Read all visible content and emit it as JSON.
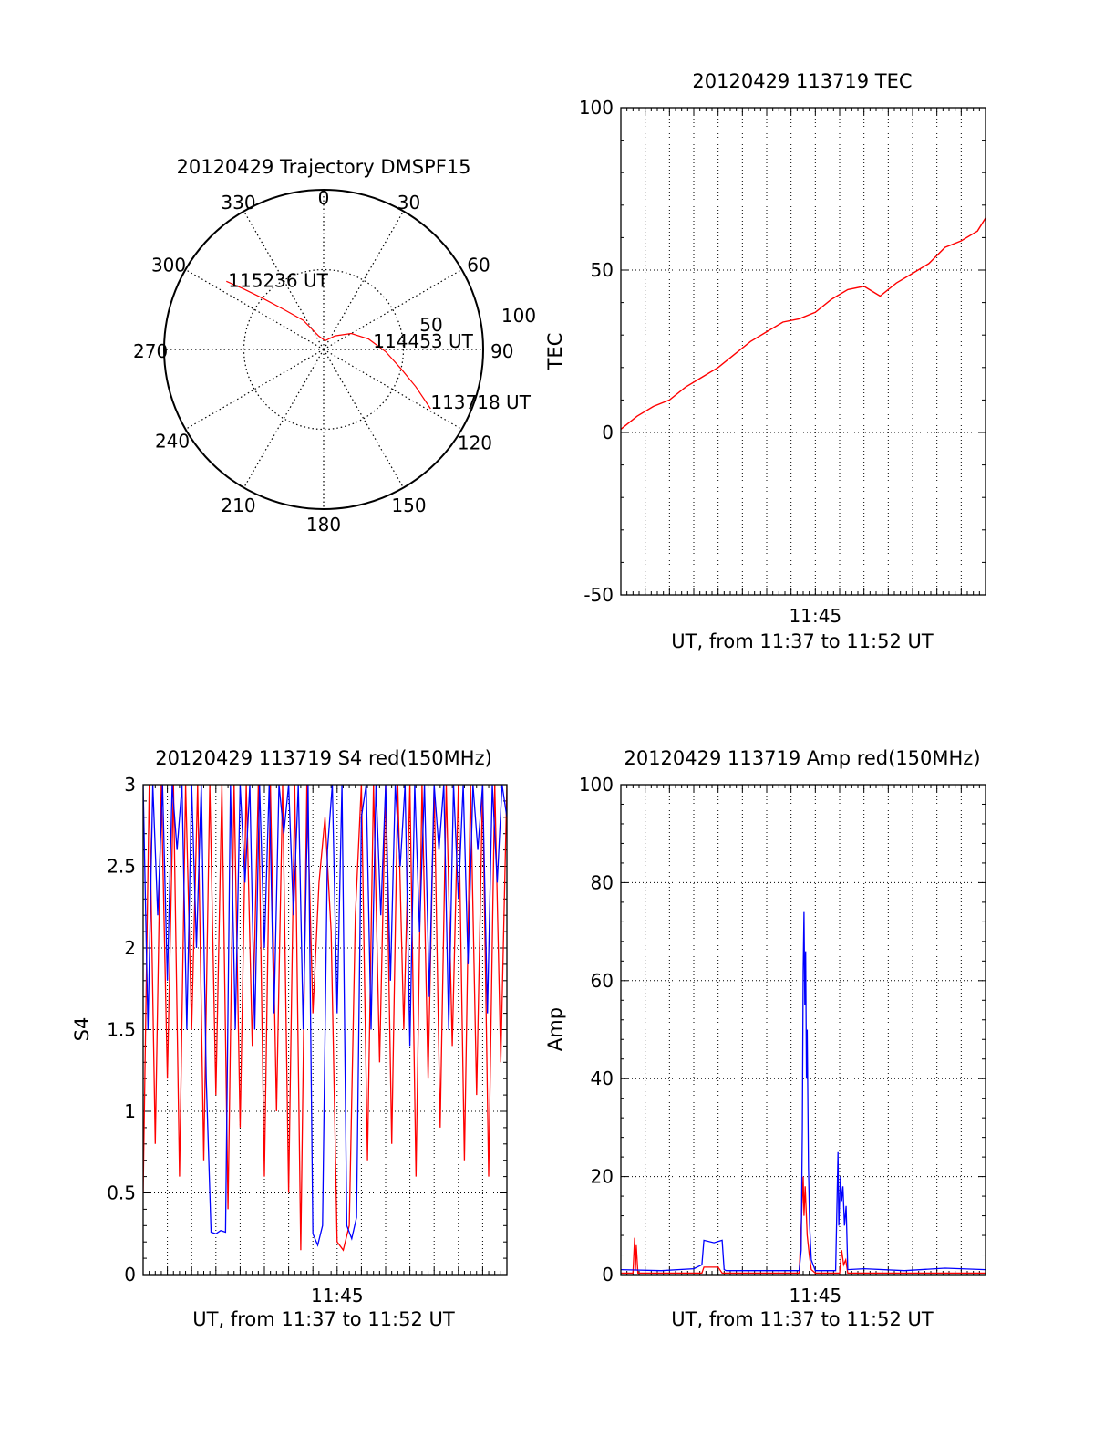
{
  "chart_data": [
    {
      "id": "trajectory",
      "type": "polar",
      "title": "20120429 Trajectory DMSPF15",
      "angle_labels": [
        "0",
        "30",
        "60",
        "90",
        "120",
        "150",
        "180",
        "210",
        "240",
        "270",
        "300",
        "330"
      ],
      "radial_labels": [
        "50",
        "100"
      ],
      "radial_axis": "elevation",
      "series": [
        {
          "color": "#ff0000",
          "points": [
            {
              "az": 119,
              "el": 21
            },
            {
              "az": 112,
              "el": 34
            },
            {
              "az": 104,
              "el": 45
            },
            {
              "az": 92,
              "el": 55
            },
            {
              "az": 77,
              "el": 64
            },
            {
              "az": 60,
              "el": 72
            },
            {
              "az": 40,
              "el": 80
            },
            {
              "az": 10,
              "el": 85
            },
            {
              "az": -20,
              "el": 82
            },
            {
              "az": -35,
              "el": 70
            },
            {
              "az": -45,
              "el": 58
            },
            {
              "az": -50,
              "el": 45
            },
            {
              "az": -53,
              "el": 33
            },
            {
              "az": -55,
              "el": 23
            }
          ]
        }
      ],
      "annotations": [
        {
          "text": "115236 UT",
          "az": -55,
          "el": 23
        },
        {
          "text": "114453 UT",
          "az": 92,
          "el": 60
        },
        {
          "text": "113718 UT",
          "az": 119,
          "el": 21
        }
      ]
    },
    {
      "id": "tec",
      "type": "line",
      "title": "20120429 113719 TEC",
      "xlabel": "UT, from 11:37 to 11:52 UT",
      "ylabel": "TEC",
      "xlim": [
        0,
        900
      ],
      "ylim": [
        -50,
        100
      ],
      "yticks": [
        "-50",
        "0",
        "50",
        "100"
      ],
      "xticks": [
        {
          "t": 480,
          "label": "11:45"
        }
      ],
      "grid": true,
      "series": [
        {
          "color": "#ff0000",
          "x": [
            0,
            40,
            80,
            120,
            160,
            200,
            240,
            280,
            320,
            360,
            400,
            440,
            480,
            520,
            560,
            600,
            640,
            680,
            720,
            760,
            800,
            840,
            880,
            900
          ],
          "y": [
            1,
            5,
            8,
            10,
            14,
            17,
            20,
            24,
            28,
            31,
            34,
            35,
            37,
            41,
            44,
            45,
            42,
            46,
            49,
            52,
            57,
            59,
            62,
            66
          ]
        }
      ]
    },
    {
      "id": "s4",
      "type": "line",
      "title": "20120429 113719 S4 red(150MHz)",
      "xlabel": "UT, from 11:37 to 11:52 UT",
      "ylabel": "S4",
      "xlim": [
        0,
        900
      ],
      "ylim": [
        0,
        3
      ],
      "yticks": [
        "0",
        "0.5",
        "1",
        "1.5",
        "2",
        "2.5",
        "3"
      ],
      "xticks": [
        {
          "t": 480,
          "label": "11:45"
        }
      ],
      "grid": true,
      "series": [
        {
          "color": "#ff0000",
          "x": [
            0,
            15,
            30,
            45,
            60,
            75,
            90,
            105,
            120,
            135,
            150,
            165,
            180,
            195,
            210,
            225,
            240,
            255,
            270,
            285,
            300,
            315,
            330,
            345,
            360,
            375,
            390,
            405,
            420,
            435,
            450,
            465,
            480,
            495,
            510,
            525,
            540,
            555,
            570,
            585,
            600,
            615,
            630,
            645,
            660,
            675,
            690,
            705,
            720,
            735,
            750,
            765,
            780,
            795,
            810,
            825,
            840,
            855,
            870,
            885,
            900
          ],
          "y": [
            0.5,
            3,
            0.8,
            3,
            1.2,
            3,
            0.6,
            3,
            1.5,
            3,
            0.7,
            3,
            1.1,
            3,
            0.4,
            3,
            0.9,
            3,
            1.4,
            3,
            0.6,
            3,
            1.0,
            3,
            0.5,
            3,
            0.15,
            3,
            1.6,
            2.4,
            2.8,
            2.1,
            0.2,
            0.15,
            0.3,
            2.2,
            3,
            0.7,
            3,
            1.3,
            3,
            0.8,
            3,
            1.5,
            3,
            0.6,
            3,
            1.2,
            3,
            0.9,
            3,
            1.4,
            3,
            0.7,
            3,
            1.1,
            3,
            0.6,
            3,
            1.3,
            3
          ]
        },
        {
          "color": "#0000ff",
          "x": [
            0,
            12,
            24,
            36,
            48,
            60,
            72,
            84,
            96,
            108,
            120,
            132,
            144,
            156,
            168,
            180,
            192,
            204,
            216,
            228,
            240,
            252,
            264,
            276,
            288,
            300,
            312,
            324,
            336,
            348,
            360,
            372,
            384,
            396,
            408,
            420,
            432,
            444,
            456,
            468,
            480,
            492,
            504,
            516,
            528,
            540,
            552,
            564,
            576,
            588,
            600,
            612,
            624,
            636,
            648,
            660,
            672,
            684,
            696,
            708,
            720,
            732,
            744,
            756,
            768,
            780,
            792,
            804,
            816,
            828,
            840,
            852,
            864,
            876,
            888,
            900
          ],
          "y": [
            3,
            1.5,
            3,
            2.2,
            3,
            1.8,
            3,
            2.6,
            3,
            1.5,
            3,
            2.0,
            3,
            1.2,
            0.26,
            0.25,
            0.27,
            0.26,
            3,
            1.5,
            3,
            2.4,
            3,
            1.5,
            3,
            2.0,
            3,
            1.6,
            3,
            2.7,
            3,
            2.2,
            3,
            1.5,
            3,
            0.25,
            0.18,
            0.3,
            2.6,
            3,
            1.6,
            3,
            0.3,
            0.22,
            0.35,
            2.8,
            3,
            1.5,
            3,
            2.2,
            3,
            1.8,
            3,
            2.5,
            3,
            1.4,
            3,
            2.1,
            3,
            1.7,
            3,
            2.6,
            3,
            1.5,
            3,
            2.3,
            3,
            1.9,
            3,
            2.6,
            3,
            1.6,
            3,
            2.4,
            3,
            2.8
          ]
        }
      ]
    },
    {
      "id": "amp",
      "type": "line",
      "title": "20120429 113719 Amp red(150MHz)",
      "xlabel": "UT, from 11:37 to 11:52 UT",
      "ylabel": "Amp",
      "xlim": [
        0,
        900
      ],
      "ylim": [
        0,
        100
      ],
      "yticks": [
        "0",
        "20",
        "40",
        "60",
        "80",
        "100"
      ],
      "xticks": [
        {
          "t": 480,
          "label": "11:45"
        }
      ],
      "grid": true,
      "series": [
        {
          "color": "#ff0000",
          "x": [
            0,
            30,
            34,
            36,
            38,
            42,
            200,
            205,
            240,
            250,
            440,
            445,
            450,
            452,
            455,
            460,
            465,
            470,
            480,
            540,
            545,
            550,
            555,
            560,
            900
          ],
          "y": [
            0.3,
            0.3,
            7.5,
            1,
            6,
            0.3,
            0.3,
            1.5,
            1.5,
            0.3,
            0.3,
            10,
            20,
            12,
            18,
            8,
            4,
            1,
            0.3,
            0.3,
            5,
            2,
            3,
            0.3,
            0.3
          ]
        },
        {
          "color": "#0000ff",
          "x": [
            0,
            100,
            180,
            200,
            205,
            230,
            250,
            255,
            260,
            440,
            445,
            448,
            450,
            452,
            454,
            456,
            458,
            460,
            463,
            466,
            470,
            480,
            530,
            536,
            538,
            542,
            545,
            548,
            552,
            556,
            560,
            600,
            700,
            800,
            900
          ],
          "y": [
            1,
            0.8,
            1.2,
            2,
            7,
            6.5,
            7,
            1,
            0.8,
            0.8,
            5,
            30,
            62,
            74,
            55,
            66,
            40,
            50,
            22,
            10,
            3,
            0.8,
            0.8,
            25,
            10,
            20,
            15,
            18,
            10,
            14,
            1,
            1.2,
            0.8,
            1.3,
            1
          ]
        }
      ]
    }
  ]
}
